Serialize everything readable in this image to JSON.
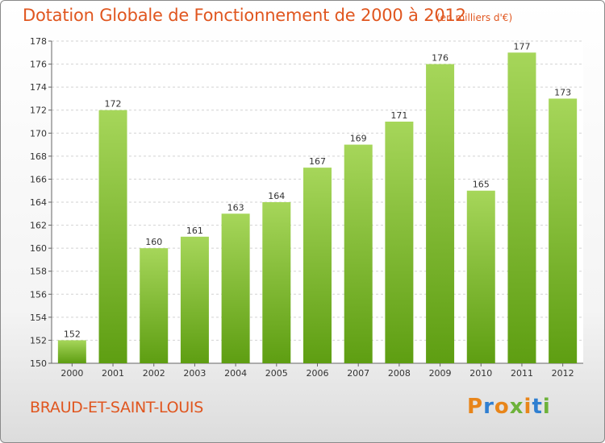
{
  "header": {
    "title": "Dotation Globale de Fonctionnement de 2000 à 2012",
    "subtitle": "(en milliers d'€)"
  },
  "footer": {
    "commune": "BRAUD-ET-SAINT-LOUIS",
    "logo": "Proxiti"
  },
  "colors": {
    "title": "#e0561f",
    "bar_light": "#a6d65a",
    "bar_dark": "#5e9e12",
    "logo": [
      "#e8851a",
      "#2f7fd1",
      "#e8851a",
      "#6db23a",
      "#e8851a",
      "#2f7fd1",
      "#6db23a"
    ]
  },
  "chart_data": {
    "type": "bar",
    "categories": [
      "2000",
      "2001",
      "2002",
      "2003",
      "2004",
      "2005",
      "2006",
      "2007",
      "2008",
      "2009",
      "2010",
      "2011",
      "2012"
    ],
    "values": [
      152,
      172,
      160,
      161,
      163,
      164,
      167,
      169,
      171,
      176,
      165,
      177,
      173
    ],
    "data_labels": [
      "152",
      "172",
      "160",
      "161",
      "163",
      "164",
      "167",
      "169",
      "171",
      "176",
      "165",
      "177",
      "173"
    ],
    "ylim": [
      150,
      178
    ],
    "yticks": [
      150,
      152,
      154,
      156,
      158,
      160,
      162,
      164,
      166,
      168,
      170,
      172,
      174,
      176,
      178
    ],
    "grid": true
  }
}
